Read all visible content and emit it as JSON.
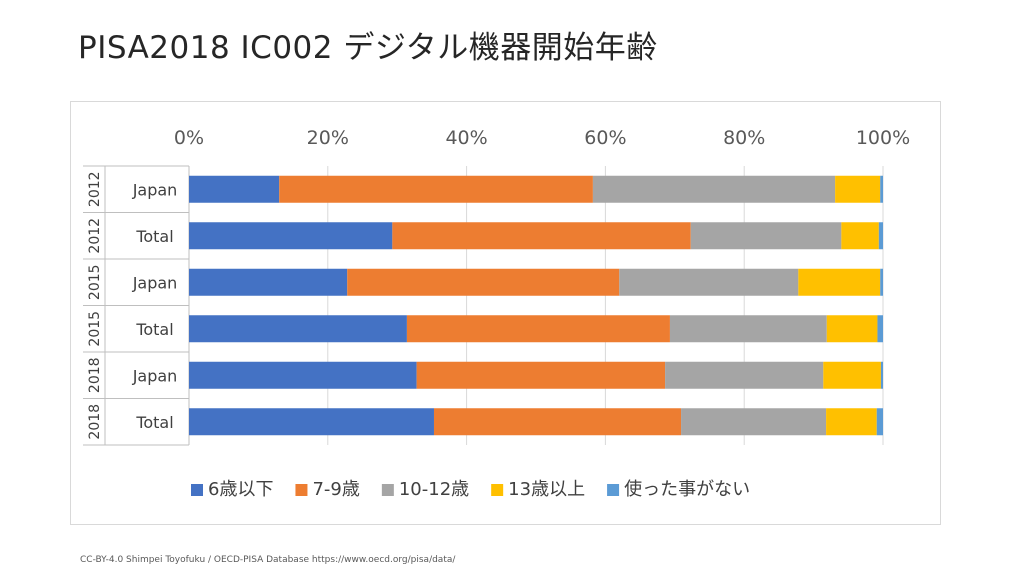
{
  "slide": {
    "title": "PISA2018 IC002 デジタル機器開始年齢",
    "footer": "CC-BY-4.0 Shimpei Toyofuku  / OECD-PISA Database https://www.oecd.org/pisa/data/"
  },
  "chart_data": {
    "type": "bar",
    "orientation": "horizontal",
    "stacked": "percent",
    "title": "PISA2018 IC002 デジタル機器開始年齢",
    "categories": [
      {
        "year": "2012",
        "label": "Japan"
      },
      {
        "year": "2012",
        "label": "Total"
      },
      {
        "year": "2015",
        "label": "Japan"
      },
      {
        "year": "2015",
        "label": "Total"
      },
      {
        "year": "2018",
        "label": "Japan"
      },
      {
        "year": "2018",
        "label": "Total"
      }
    ],
    "series": [
      {
        "name": "6歳以下",
        "color": "#4472C4",
        "values": [
          13.0,
          29.3,
          22.8,
          31.4,
          32.8,
          35.3
        ]
      },
      {
        "name": "7-9歳",
        "color": "#ED7D31",
        "values": [
          45.2,
          43.0,
          39.2,
          37.9,
          35.8,
          35.6
        ]
      },
      {
        "name": "10-12歳",
        "color": "#A5A5A5",
        "values": [
          34.9,
          21.7,
          25.8,
          22.6,
          22.8,
          20.9
        ]
      },
      {
        "name": "13歳以上",
        "color": "#FFC000",
        "values": [
          6.5,
          5.4,
          11.8,
          7.3,
          8.3,
          7.3
        ]
      },
      {
        "name": "使った事がない",
        "color": "#5B9BD5",
        "values": [
          0.4,
          0.6,
          0.4,
          0.8,
          0.3,
          0.9
        ]
      }
    ],
    "x_ticks": [
      "0%",
      "20%",
      "40%",
      "60%",
      "80%",
      "100%"
    ],
    "xlim": [
      0,
      100
    ],
    "axis_position": "top",
    "grid": true,
    "legend": "bottom"
  }
}
